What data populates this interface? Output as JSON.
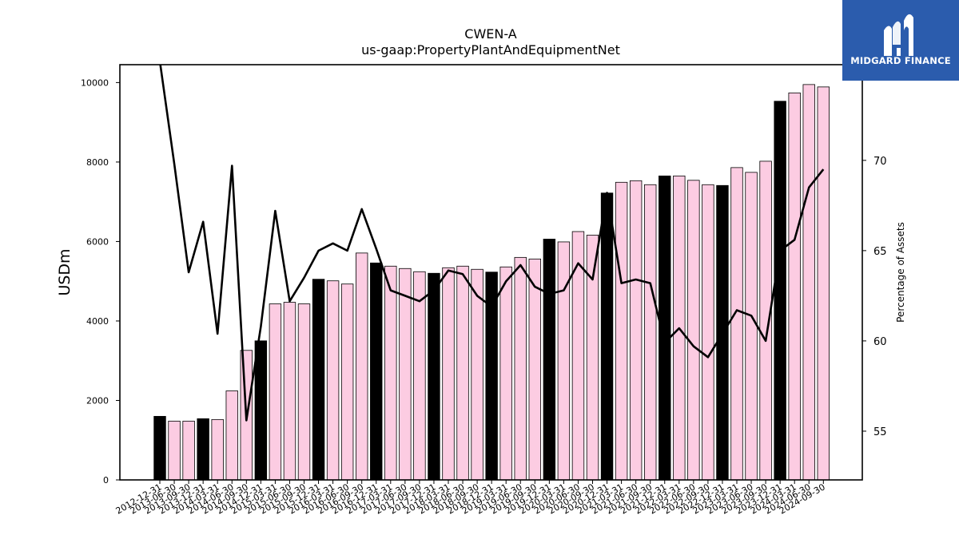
{
  "logo": {
    "text": "MIDGARD FINANCE",
    "color": "#2b5cad"
  },
  "chart_data": {
    "type": "bar",
    "title": "CWEN-A",
    "subtitle": "us-gaap:PropertyPlantAndEquipmentNet",
    "ylabel": "USDm",
    "y2label": "Percentage of Assets",
    "ylim": [
      0,
      10450
    ],
    "y2lim": [
      52.3,
      75.3
    ],
    "yticks": [
      0,
      2000,
      4000,
      6000,
      8000,
      10000
    ],
    "y2ticks": [
      55,
      60,
      65,
      70
    ],
    "grid": false,
    "categories": [
      "2012-12-31",
      "2013-06-30",
      "2013-09-30",
      "2013-12-31",
      "2014-03-31",
      "2014-06-30",
      "2014-09-30",
      "2014-12-31",
      "2015-03-31",
      "2015-06-30",
      "2015-09-30",
      "2015-12-31",
      "2016-03-31",
      "2016-06-30",
      "2016-09-30",
      "2016-12-31",
      "2017-03-31",
      "2017-06-30",
      "2017-09-30",
      "2017-12-31",
      "2018-03-31",
      "2018-06-30",
      "2018-09-30",
      "2018-12-31",
      "2019-03-31",
      "2019-06-30",
      "2019-09-30",
      "2019-12-31",
      "2020-03-31",
      "2020-06-30",
      "2020-09-30",
      "2020-12-31",
      "2021-03-31",
      "2021-06-30",
      "2021-09-30",
      "2021-12-31",
      "2022-03-31",
      "2022-06-30",
      "2022-09-30",
      "2022-12-31",
      "2023-03-31",
      "2023-06-30",
      "2023-09-30",
      "2023-12-31",
      "2024-03-31",
      "2024-06-30",
      "2024-09-30"
    ],
    "series": [
      {
        "type": "bar",
        "values": [
          1600,
          1480,
          1480,
          1540,
          1520,
          2240,
          3260,
          3500,
          4430,
          4470,
          4430,
          5050,
          5010,
          4930,
          5710,
          5460,
          5380,
          5320,
          5240,
          5200,
          5340,
          5380,
          5300,
          5230,
          5360,
          5600,
          5560,
          6060,
          5990,
          6250,
          6160,
          7220,
          7490,
          7530,
          7430,
          7650,
          7650,
          7540,
          7430,
          7410,
          7860,
          7740,
          8020,
          9530,
          9740,
          9950,
          9890
        ],
        "annual": [
          true,
          false,
          false,
          true,
          false,
          false,
          false,
          true,
          false,
          false,
          false,
          true,
          false,
          false,
          false,
          true,
          false,
          false,
          false,
          true,
          false,
          false,
          false,
          true,
          false,
          false,
          false,
          true,
          false,
          false,
          false,
          true,
          false,
          false,
          false,
          true,
          false,
          false,
          false,
          true,
          false,
          false,
          false,
          true,
          false,
          false,
          false
        ]
      },
      {
        "type": "line",
        "axis": "right",
        "values": [
          75.5,
          69.8,
          63.8,
          66.6,
          60.4,
          69.7,
          55.6,
          60.8,
          67.2,
          62.2,
          63.5,
          65.0,
          65.4,
          65.0,
          67.3,
          65.1,
          62.8,
          62.5,
          62.2,
          62.8,
          63.9,
          63.7,
          62.5,
          61.9,
          63.3,
          64.2,
          63.0,
          62.6,
          62.8,
          64.3,
          63.4,
          68.2,
          63.2,
          63.4,
          63.2,
          59.9,
          60.7,
          59.7,
          59.1,
          60.4,
          61.7,
          61.4,
          60.0,
          65.0,
          65.6,
          68.5,
          69.5
        ]
      }
    ],
    "colors": {
      "bar": "#fccce2",
      "annual_bar": "#000000",
      "line": "#000000"
    }
  }
}
